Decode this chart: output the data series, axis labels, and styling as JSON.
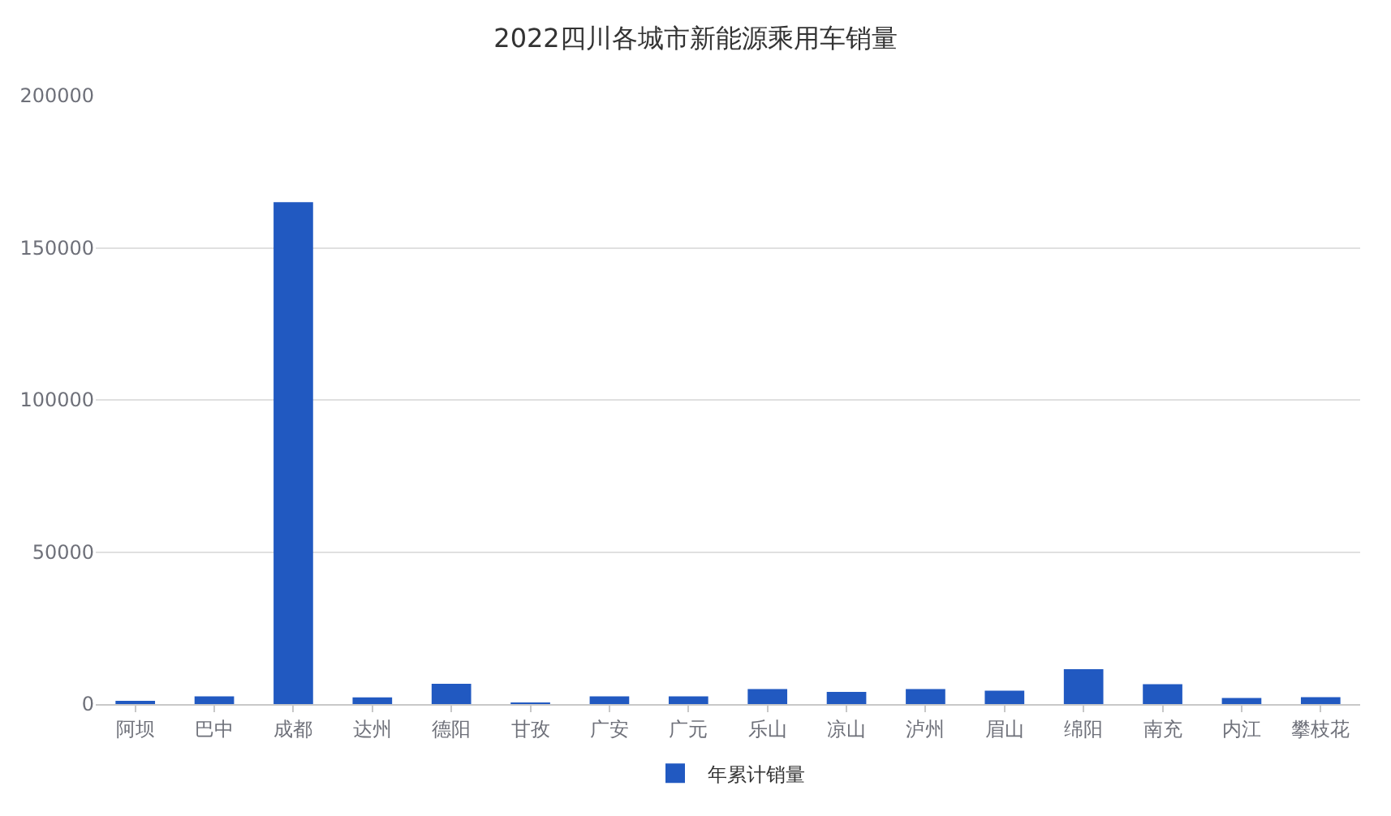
{
  "chart_data": {
    "type": "bar",
    "title": "2022四川各城市新能源乘用车销量",
    "categories": [
      "阿坝",
      "巴中",
      "成都",
      "达州",
      "德阳",
      "甘孜",
      "广安",
      "广元",
      "乐山",
      "凉山",
      "泸州",
      "眉山",
      "绵阳",
      "南充",
      "内江",
      "攀枝花"
    ],
    "series": [
      {
        "name": "年累计销量",
        "color": "#2159c1",
        "values": [
          600,
          2500,
          165000,
          2200,
          6700,
          200,
          2500,
          2500,
          4900,
          4000,
          4900,
          4400,
          11500,
          6500,
          2000,
          2300
        ]
      }
    ],
    "ylim": [
      0,
      200000
    ],
    "yticks": [
      0,
      50000,
      100000,
      150000,
      200000
    ],
    "grid": "y",
    "legend": "bottom"
  }
}
